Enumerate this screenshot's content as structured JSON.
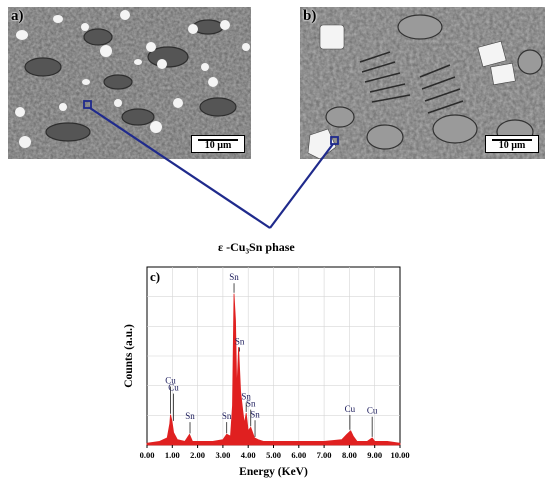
{
  "panels": {
    "a": {
      "letter": "a)",
      "scale": "10 µm"
    },
    "b": {
      "letter": "b)",
      "scale": "10 µm"
    }
  },
  "phase_label": "ε -Cu₃Sn phase",
  "colors": {
    "connector": "#1f2a8c",
    "spectrum": "#e02020",
    "sem_bg": "#6b6b6b"
  },
  "chart_data": {
    "type": "line",
    "panel_label": "c)",
    "xlabel": "Energy (KeV)",
    "ylabel": "Counts (a.u.)",
    "xlim": [
      0,
      10
    ],
    "ylim": [
      0,
      100
    ],
    "x_ticks": [
      "0.00",
      "1.00",
      "2.00",
      "3.00",
      "4.00",
      "5.00",
      "6.00",
      "7.00",
      "8.00",
      "9.00",
      "10.00"
    ],
    "grid": true,
    "series": [
      {
        "points": [
          [
            0.0,
            1
          ],
          [
            0.5,
            2
          ],
          [
            0.8,
            4
          ],
          [
            0.9,
            12
          ],
          [
            0.93,
            17
          ],
          [
            0.98,
            14
          ],
          [
            1.05,
            7
          ],
          [
            1.2,
            3
          ],
          [
            1.5,
            2
          ],
          [
            1.68,
            6
          ],
          [
            1.8,
            2
          ],
          [
            2.2,
            2
          ],
          [
            2.6,
            2
          ],
          [
            3.0,
            3
          ],
          [
            3.15,
            6
          ],
          [
            3.3,
            5
          ],
          [
            3.38,
            22
          ],
          [
            3.44,
            85
          ],
          [
            3.5,
            70
          ],
          [
            3.55,
            30
          ],
          [
            3.62,
            55
          ],
          [
            3.7,
            30
          ],
          [
            3.78,
            20
          ],
          [
            3.85,
            12
          ],
          [
            3.92,
            18
          ],
          [
            4.0,
            8
          ],
          [
            4.1,
            10
          ],
          [
            4.25,
            4
          ],
          [
            4.4,
            3
          ],
          [
            4.6,
            2
          ],
          [
            5,
            2
          ],
          [
            6,
            2
          ],
          [
            7,
            2
          ],
          [
            7.7,
            3
          ],
          [
            7.9,
            6
          ],
          [
            8.05,
            8
          ],
          [
            8.15,
            5
          ],
          [
            8.3,
            2
          ],
          [
            8.7,
            2
          ],
          [
            8.9,
            4
          ],
          [
            9.0,
            2
          ],
          [
            9.5,
            2
          ],
          [
            10,
            1
          ]
        ]
      }
    ],
    "annotations": [
      {
        "label": "Cu",
        "x": 0.93,
        "y": 17,
        "ly": 34
      },
      {
        "label": "Cu",
        "x": 1.05,
        "y": 13,
        "ly": 30
      },
      {
        "label": "Sn",
        "x": 1.7,
        "y": 6,
        "ly": 14
      },
      {
        "label": "Sn",
        "x": 3.15,
        "y": 6,
        "ly": 14
      },
      {
        "label": "Sn",
        "x": 3.44,
        "y": 85,
        "ly": 92
      },
      {
        "label": "Sn",
        "x": 3.66,
        "y": 52,
        "ly": 56
      },
      {
        "label": "Sn",
        "x": 3.92,
        "y": 18,
        "ly": 25
      },
      {
        "label": "Sn",
        "x": 4.1,
        "y": 10,
        "ly": 21
      },
      {
        "label": "Sn",
        "x": 4.27,
        "y": 4,
        "ly": 15
      },
      {
        "label": "Cu",
        "x": 8.02,
        "y": 8,
        "ly": 18
      },
      {
        "label": "Cu",
        "x": 8.9,
        "y": 4,
        "ly": 17
      }
    ]
  }
}
